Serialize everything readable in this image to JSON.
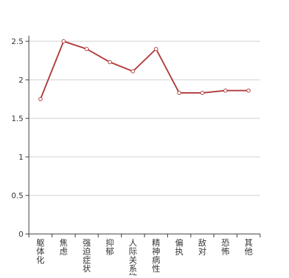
{
  "chart_data": {
    "type": "line",
    "categories": [
      "躯体化",
      "焦虑",
      "强迫症状",
      "抑郁",
      "人际关系敏感",
      "精神病性",
      "偏执",
      "敌对",
      "恐怖",
      "其他"
    ],
    "series": [
      {
        "values": [
          1.75,
          2.5,
          2.4,
          2.23,
          2.11,
          2.4,
          1.83,
          1.83,
          1.86,
          1.86
        ],
        "color": "#b03a3a"
      }
    ],
    "y_ticks": [
      "0",
      "0.5",
      "1",
      "1.5",
      "2",
      "2.5"
    ],
    "ylim": [
      0,
      2.5
    ],
    "grid": true,
    "legend": "none"
  }
}
